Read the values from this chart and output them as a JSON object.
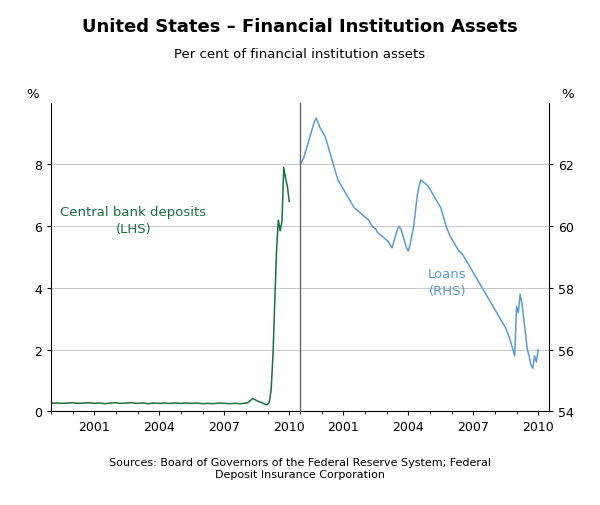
{
  "title": "United States – Financial Institution Assets",
  "subtitle": "Per cent of financial institution assets",
  "source": "Sources: Board of Governors of the Federal Reserve System; Federal\nDeposit Insurance Corporation",
  "left_label": "Central bank deposits\n(LHS)",
  "right_label": "Loans\n(RHS)",
  "left_ylabel": "%",
  "right_ylabel": "%",
  "left_ylim": [
    0,
    10
  ],
  "right_ylim": [
    54,
    64
  ],
  "left_yticks": [
    0,
    2,
    4,
    6,
    8
  ],
  "right_yticks": [
    54,
    56,
    58,
    60,
    62
  ],
  "xtick_labels_left": [
    "2001",
    "2004",
    "2007",
    "2010"
  ],
  "xtick_labels_right": [
    "2001",
    "2004",
    "2007",
    "2010"
  ],
  "divider_color": "#666666",
  "green_color": "#1a7040",
  "blue_color": "#5b9bd5",
  "grid_color": "#c8c8c8",
  "background_color": "#ffffff",
  "title_fontsize": 13,
  "subtitle_fontsize": 9.5,
  "label_fontsize": 9.5,
  "tick_fontsize": 9,
  "source_fontsize": 8,
  "green_data_x": [
    1999.0,
    1999.25,
    1999.5,
    1999.75,
    2000.0,
    2000.25,
    2000.5,
    2000.75,
    2001.0,
    2001.25,
    2001.5,
    2001.75,
    2002.0,
    2002.25,
    2002.5,
    2002.75,
    2003.0,
    2003.25,
    2003.5,
    2003.75,
    2004.0,
    2004.25,
    2004.5,
    2004.75,
    2005.0,
    2005.25,
    2005.5,
    2005.75,
    2006.0,
    2006.25,
    2006.5,
    2006.75,
    2007.0,
    2007.25,
    2007.5,
    2007.75,
    2008.0,
    2008.083,
    2008.167,
    2008.25,
    2008.333,
    2008.417,
    2008.5,
    2008.583,
    2008.667,
    2008.75,
    2008.833,
    2008.917,
    2009.0,
    2009.083,
    2009.167,
    2009.25,
    2009.333,
    2009.417,
    2009.5,
    2009.583,
    2009.667,
    2009.75,
    2009.833,
    2009.917,
    2010.0
  ],
  "green_data_y": [
    0.27,
    0.27,
    0.26,
    0.27,
    0.28,
    0.26,
    0.27,
    0.28,
    0.26,
    0.27,
    0.25,
    0.27,
    0.28,
    0.26,
    0.27,
    0.28,
    0.26,
    0.27,
    0.25,
    0.27,
    0.26,
    0.27,
    0.26,
    0.27,
    0.26,
    0.27,
    0.26,
    0.27,
    0.25,
    0.26,
    0.25,
    0.27,
    0.26,
    0.25,
    0.26,
    0.25,
    0.27,
    0.28,
    0.32,
    0.38,
    0.42,
    0.38,
    0.35,
    0.32,
    0.3,
    0.28,
    0.25,
    0.22,
    0.22,
    0.3,
    0.7,
    1.8,
    3.5,
    5.2,
    6.2,
    5.85,
    6.15,
    7.9,
    7.55,
    7.3,
    6.8
  ],
  "blue_data_x": [
    1999.0,
    1999.083,
    1999.167,
    1999.25,
    1999.333,
    1999.417,
    1999.5,
    1999.583,
    1999.667,
    1999.75,
    1999.833,
    1999.917,
    2000.0,
    2000.083,
    2000.167,
    2000.25,
    2000.333,
    2000.417,
    2000.5,
    2000.583,
    2000.667,
    2000.75,
    2000.833,
    2000.917,
    2001.0,
    2001.083,
    2001.167,
    2001.25,
    2001.333,
    2001.417,
    2001.5,
    2001.583,
    2001.667,
    2001.75,
    2001.833,
    2001.917,
    2002.0,
    2002.083,
    2002.167,
    2002.25,
    2002.333,
    2002.417,
    2002.5,
    2002.583,
    2002.667,
    2002.75,
    2002.833,
    2002.917,
    2003.0,
    2003.083,
    2003.167,
    2003.25,
    2003.333,
    2003.417,
    2003.5,
    2003.583,
    2003.667,
    2003.75,
    2003.833,
    2003.917,
    2004.0,
    2004.083,
    2004.167,
    2004.25,
    2004.333,
    2004.417,
    2004.5,
    2004.583,
    2004.667,
    2004.75,
    2004.833,
    2004.917,
    2005.0,
    2005.083,
    2005.167,
    2005.25,
    2005.333,
    2005.417,
    2005.5,
    2005.583,
    2005.667,
    2005.75,
    2005.833,
    2005.917,
    2006.0,
    2006.083,
    2006.167,
    2006.25,
    2006.333,
    2006.417,
    2006.5,
    2006.583,
    2006.667,
    2006.75,
    2006.833,
    2006.917,
    2007.0,
    2007.083,
    2007.167,
    2007.25,
    2007.333,
    2007.417,
    2007.5,
    2007.583,
    2007.667,
    2007.75,
    2007.833,
    2007.917,
    2008.0,
    2008.083,
    2008.167,
    2008.25,
    2008.333,
    2008.417,
    2008.5,
    2008.583,
    2008.667,
    2008.75,
    2008.833,
    2008.917,
    2009.0,
    2009.083,
    2009.167,
    2009.25,
    2009.333,
    2009.417,
    2009.5,
    2009.583,
    2009.667,
    2009.75,
    2009.833,
    2009.917,
    2010.0
  ],
  "blue_data_y": [
    62.0,
    62.1,
    62.2,
    62.4,
    62.6,
    62.8,
    63.0,
    63.2,
    63.4,
    63.5,
    63.35,
    63.2,
    63.1,
    63.0,
    62.9,
    62.7,
    62.5,
    62.3,
    62.1,
    61.9,
    61.7,
    61.5,
    61.4,
    61.3,
    61.2,
    61.1,
    61.0,
    60.9,
    60.8,
    60.7,
    60.6,
    60.55,
    60.5,
    60.45,
    60.4,
    60.35,
    60.3,
    60.25,
    60.2,
    60.1,
    60.0,
    59.95,
    59.9,
    59.8,
    59.75,
    59.7,
    59.65,
    59.6,
    59.55,
    59.5,
    59.4,
    59.3,
    59.5,
    59.7,
    59.9,
    60.0,
    59.9,
    59.7,
    59.5,
    59.3,
    59.2,
    59.4,
    59.7,
    60.0,
    60.5,
    61.0,
    61.3,
    61.5,
    61.45,
    61.4,
    61.35,
    61.3,
    61.2,
    61.1,
    61.0,
    60.9,
    60.8,
    60.7,
    60.6,
    60.4,
    60.2,
    60.0,
    59.85,
    59.7,
    59.6,
    59.5,
    59.4,
    59.3,
    59.2,
    59.15,
    59.1,
    59.0,
    58.9,
    58.8,
    58.7,
    58.6,
    58.5,
    58.4,
    58.3,
    58.2,
    58.1,
    58.0,
    57.9,
    57.8,
    57.7,
    57.6,
    57.5,
    57.4,
    57.3,
    57.2,
    57.1,
    57.0,
    56.9,
    56.8,
    56.7,
    56.55,
    56.4,
    56.2,
    56.0,
    55.8,
    57.4,
    57.2,
    57.8,
    57.5,
    57.0,
    56.5,
    56.0,
    55.8,
    55.5,
    55.4,
    55.8,
    55.6,
    56.0
  ]
}
